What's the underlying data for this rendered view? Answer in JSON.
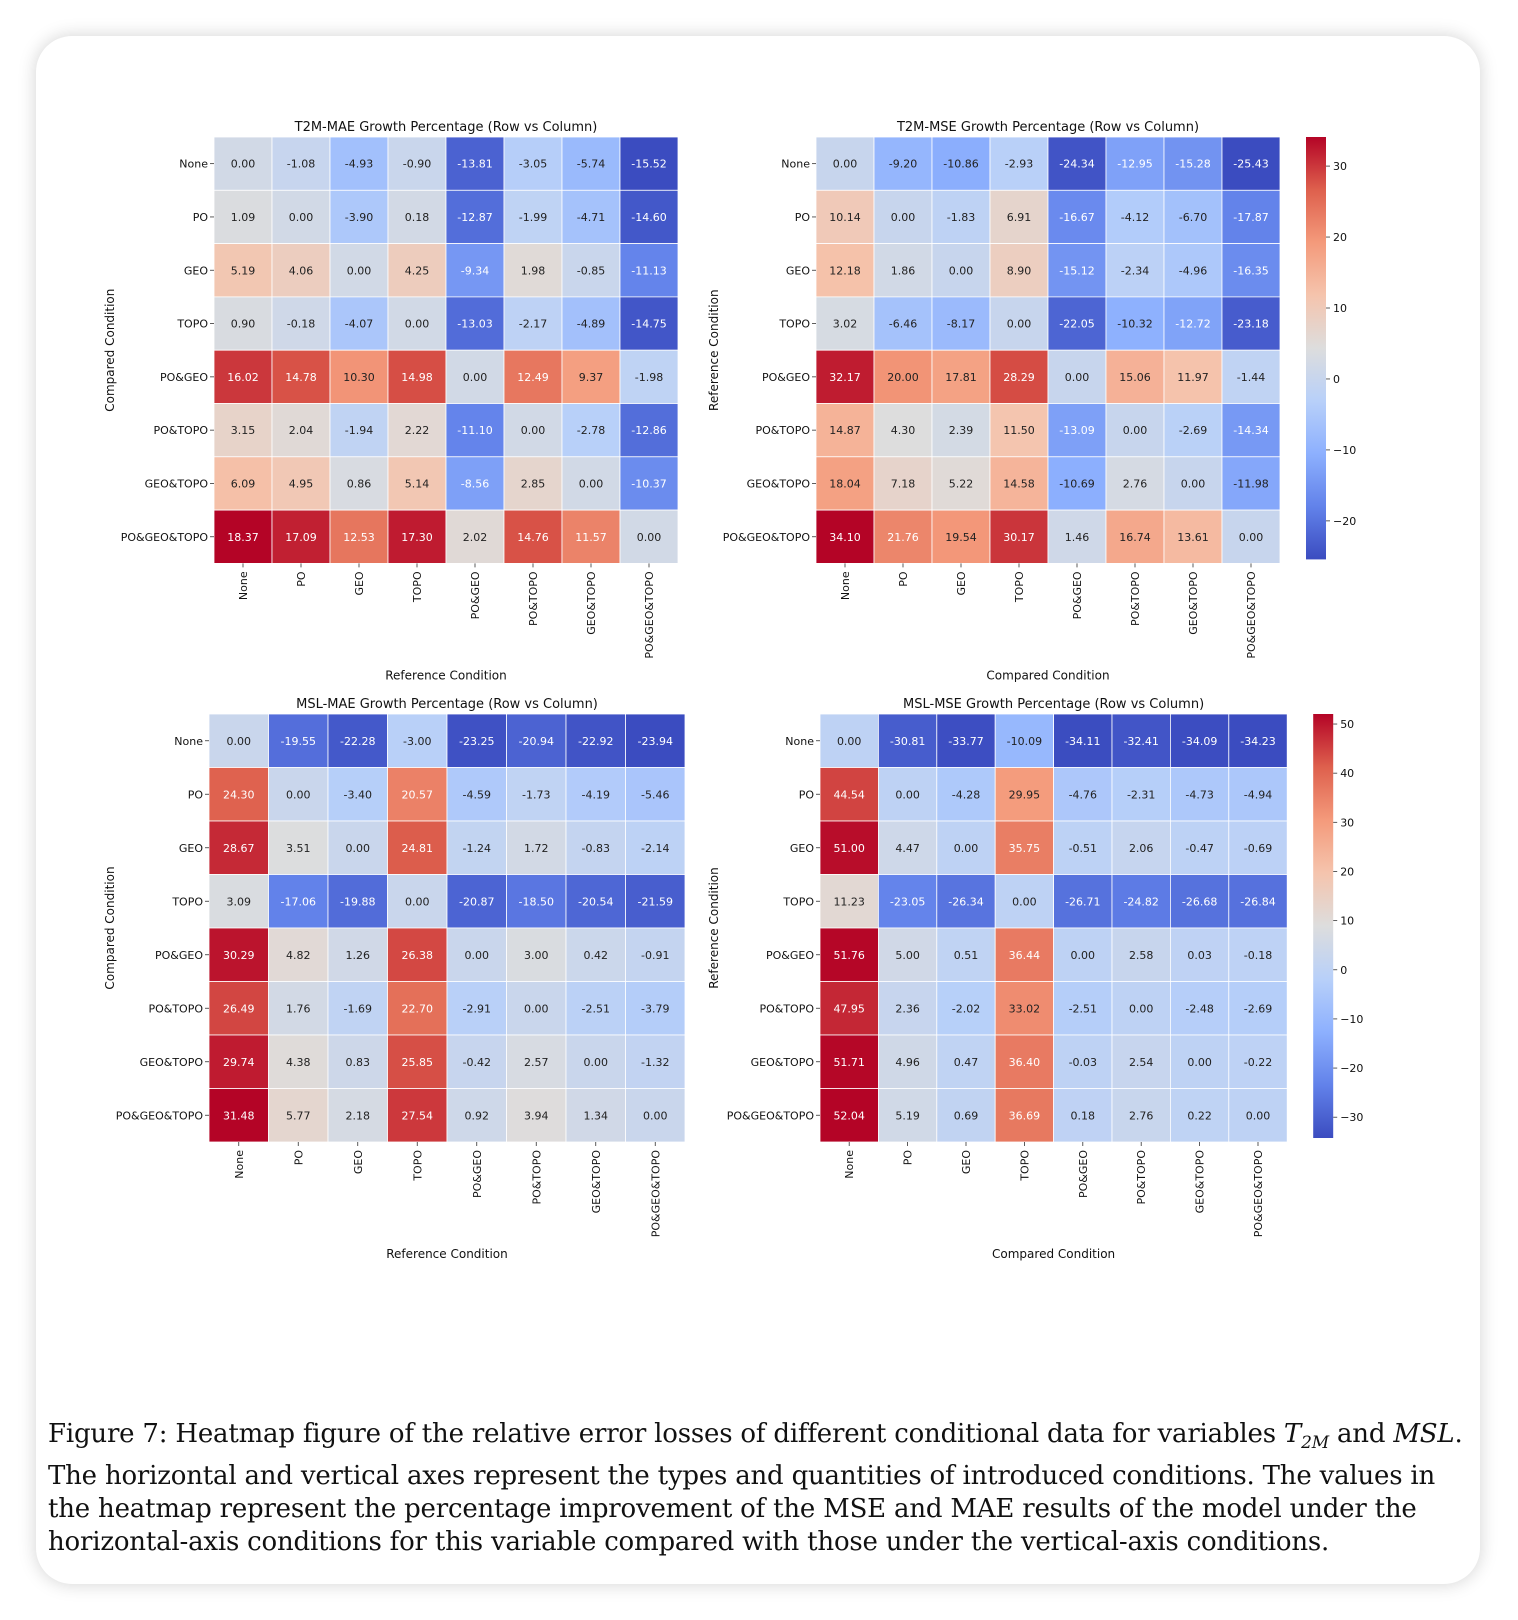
{
  "rows": [
    "None",
    "PO",
    "GEO",
    "TOPO",
    "PO&GEO",
    "PO&TOPO",
    "GEO&TOPO",
    "PO&GEO&TOPO"
  ],
  "cols": [
    "None",
    "PO",
    "GEO",
    "TOPO",
    "PO&GEO",
    "PO&TOPO",
    "GEO&TOPO",
    "PO&GEO&TOPO"
  ],
  "colors": {
    "negative": "#3b4cc0",
    "neutral": "#dddddd",
    "positive": "#b40426"
  },
  "chart_data": [
    {
      "type": "heatmap",
      "title": "T2M-MAE Growth Percentage (Row vs Column)",
      "xlabel": "Reference Condition",
      "ylabel": "Compared Condition",
      "colorbar": false,
      "vmin": -15.52,
      "vmax": 18.37,
      "values": [
        [
          0.0,
          -1.08,
          -4.93,
          -0.9,
          -13.81,
          -3.05,
          -5.74,
          -15.52
        ],
        [
          1.09,
          0.0,
          -3.9,
          0.18,
          -12.87,
          -1.99,
          -4.71,
          -14.6
        ],
        [
          5.19,
          4.06,
          0.0,
          4.25,
          -9.34,
          1.98,
          -0.85,
          -11.13
        ],
        [
          0.9,
          -0.18,
          -4.07,
          0.0,
          -13.03,
          -2.17,
          -4.89,
          -14.75
        ],
        [
          16.02,
          14.78,
          10.3,
          14.98,
          0.0,
          12.49,
          9.37,
          -1.98
        ],
        [
          3.15,
          2.04,
          -1.94,
          2.22,
          -11.1,
          0.0,
          -2.78,
          -12.86
        ],
        [
          6.09,
          4.95,
          0.86,
          5.14,
          -8.56,
          2.85,
          0.0,
          -10.37
        ],
        [
          18.37,
          17.09,
          12.53,
          17.3,
          2.02,
          14.76,
          11.57,
          0.0
        ]
      ]
    },
    {
      "type": "heatmap",
      "title": "T2M-MSE Growth Percentage (Row vs Column)",
      "xlabel": "Compared Condition",
      "ylabel": "Reference Condition",
      "colorbar": true,
      "vmin": -25.43,
      "vmax": 34.1,
      "colorbar_ticks": [
        -20,
        -10,
        0,
        10,
        20,
        30
      ],
      "values": [
        [
          0.0,
          -9.2,
          -10.86,
          -2.93,
          -24.34,
          -12.95,
          -15.28,
          -25.43
        ],
        [
          10.14,
          0.0,
          -1.83,
          6.91,
          -16.67,
          -4.12,
          -6.7,
          -17.87
        ],
        [
          12.18,
          1.86,
          0.0,
          8.9,
          -15.12,
          -2.34,
          -4.96,
          -16.35
        ],
        [
          3.02,
          -6.46,
          -8.17,
          0.0,
          -22.05,
          -10.32,
          -12.72,
          -23.18
        ],
        [
          32.17,
          20.0,
          17.81,
          28.29,
          0.0,
          15.06,
          11.97,
          -1.44
        ],
        [
          14.87,
          4.3,
          2.39,
          11.5,
          -13.09,
          0.0,
          -2.69,
          -14.34
        ],
        [
          18.04,
          7.18,
          5.22,
          14.58,
          -10.69,
          2.76,
          0.0,
          -11.98
        ],
        [
          34.1,
          21.76,
          19.54,
          30.17,
          1.46,
          16.74,
          13.61,
          0.0
        ]
      ]
    },
    {
      "type": "heatmap",
      "title": "MSL-MAE Growth Percentage (Row vs Column)",
      "xlabel": "Reference Condition",
      "ylabel": "Compared Condition",
      "colorbar": false,
      "vmin": -23.94,
      "vmax": 31.48,
      "values": [
        [
          0.0,
          -19.55,
          -22.28,
          -3.0,
          -23.25,
          -20.94,
          -22.92,
          -23.94
        ],
        [
          24.3,
          0.0,
          -3.4,
          20.57,
          -4.59,
          -1.73,
          -4.19,
          -5.46
        ],
        [
          28.67,
          3.51,
          0.0,
          24.81,
          -1.24,
          1.72,
          -0.83,
          -2.14
        ],
        [
          3.09,
          -17.06,
          -19.88,
          0.0,
          -20.87,
          -18.5,
          -20.54,
          -21.59
        ],
        [
          30.29,
          4.82,
          1.26,
          26.38,
          0.0,
          3.0,
          0.42,
          -0.91
        ],
        [
          26.49,
          1.76,
          -1.69,
          22.7,
          -2.91,
          0.0,
          -2.51,
          -3.79
        ],
        [
          29.74,
          4.38,
          0.83,
          25.85,
          -0.42,
          2.57,
          0.0,
          -1.32
        ],
        [
          31.48,
          5.77,
          2.18,
          27.54,
          0.92,
          3.94,
          1.34,
          0.0
        ]
      ]
    },
    {
      "type": "heatmap",
      "title": "MSL-MSE Growth Percentage (Row vs Column)",
      "xlabel": "Compared Condition",
      "ylabel": "Reference Condition",
      "colorbar": true,
      "vmin": -34.23,
      "vmax": 52.04,
      "colorbar_ticks": [
        -30,
        -20,
        -10,
        0,
        10,
        20,
        30,
        40,
        50
      ],
      "values": [
        [
          0.0,
          -30.81,
          -33.77,
          -10.09,
          -34.11,
          -32.41,
          -34.09,
          -34.23
        ],
        [
          44.54,
          0.0,
          -4.28,
          29.95,
          -4.76,
          -2.31,
          -4.73,
          -4.94
        ],
        [
          51.0,
          4.47,
          0.0,
          35.75,
          -0.51,
          2.06,
          -0.47,
          -0.69
        ],
        [
          11.23,
          -23.05,
          -26.34,
          0.0,
          -26.71,
          -24.82,
          -26.68,
          -26.84
        ],
        [
          51.76,
          5.0,
          0.51,
          36.44,
          0.0,
          2.58,
          0.03,
          -0.18
        ],
        [
          47.95,
          2.36,
          -2.02,
          33.02,
          -2.51,
          0.0,
          -2.48,
          -2.69
        ],
        [
          51.71,
          4.96,
          0.47,
          36.4,
          -0.03,
          2.54,
          0.0,
          -0.22
        ],
        [
          52.04,
          5.19,
          0.69,
          36.69,
          0.18,
          2.76,
          0.22,
          0.0
        ]
      ]
    }
  ],
  "caption": {
    "prefix": "Figure 7: Heatmap figure of the relative error losses of different conditional data for variables ",
    "var1": "T",
    "var1_sub": "2M",
    "mid": " and ",
    "var2": "MSL",
    "suffix": ". The horizontal and vertical axes represent the types and quantities of introduced conditions. The values in the heatmap represent the percentage improvement of the MSE and MAE results of the model under the horizontal-axis conditions for this variable compared with those under the vertical-axis conditions."
  }
}
